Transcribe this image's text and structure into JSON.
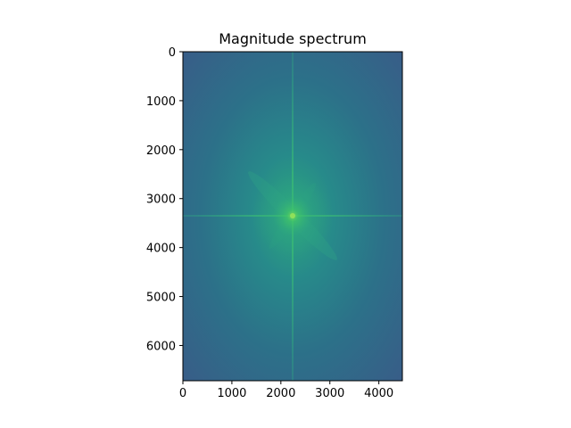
{
  "chart_data": {
    "type": "heatmap",
    "title": "Magnitude spectrum",
    "xlabel": "",
    "ylabel": "",
    "xlim": [
      0,
      4480
    ],
    "ylim": [
      6720,
      0
    ],
    "x_ticks": [
      0,
      1000,
      2000,
      3000,
      4000
    ],
    "y_ticks": [
      0,
      1000,
      2000,
      3000,
      4000,
      5000,
      6000
    ],
    "colormap": "viridis",
    "grid": false,
    "spectrum_center": [
      2240,
      3360
    ],
    "features": [
      "bright center peak",
      "horizontal streak through center",
      "vertical streak through center",
      "diagonal streak from upper-left to lower-right"
    ]
  },
  "colors": {
    "background_dark": "#355f8c",
    "background_mid": "#2a7f8e",
    "center_bright": "#3fc06a",
    "streak": "#2fa383"
  }
}
